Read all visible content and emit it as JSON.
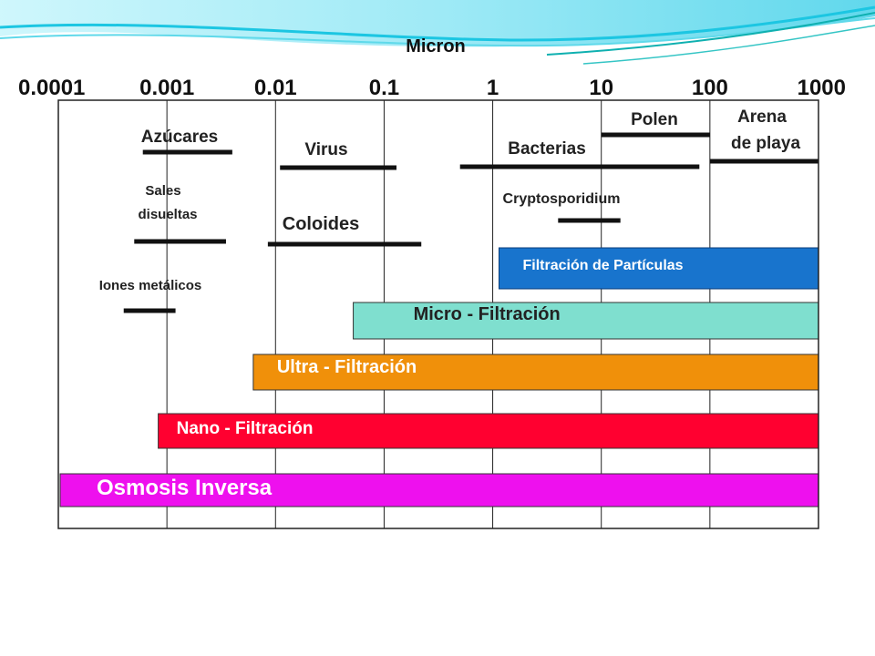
{
  "colors": {
    "accent_cyan": "#22d0f0",
    "accent_teal": "#14b8b8",
    "bar_line": "#111111",
    "particle_band": "#1874cd",
    "particle_band_text": "#ffffff",
    "micro_band": "#7fdfcf",
    "ultra_band": "#f0900a",
    "nano_band": "#ff0030",
    "ro_band": "#ee10ee"
  },
  "chart_data": {
    "type": "bar",
    "orientation": "horizontal-range",
    "x_scale": "log",
    "x_range": [
      0.0001,
      1000
    ],
    "xlabel": "Micron",
    "x_ticks": [
      "0.0001",
      "0.001",
      "0.01",
      "0.1",
      "1",
      "10",
      "100",
      "1000"
    ],
    "grid": "vertical",
    "items": [
      {
        "name": "Azúcares",
        "range": [
          0.0006,
          0.004
        ]
      },
      {
        "name": "Sales disueltas",
        "range": [
          0.0005,
          0.0035
        ]
      },
      {
        "name": "Iones metálicos",
        "range": [
          0.0004,
          0.0012
        ]
      },
      {
        "name": "Virus",
        "range": [
          0.011,
          0.13
        ]
      },
      {
        "name": "Coloides",
        "range": [
          0.0085,
          0.22
        ]
      },
      {
        "name": "Bacterias",
        "range": [
          0.5,
          80
        ]
      },
      {
        "name": "Cryptosporidium",
        "range": [
          4,
          15
        ]
      },
      {
        "name": "Polen",
        "range": [
          10,
          100
        ]
      },
      {
        "name": "Arena de playa",
        "range": [
          100,
          1000
        ]
      }
    ],
    "processes": [
      {
        "name": "Filtración de Partículas",
        "range": [
          1.1,
          1000
        ]
      },
      {
        "name": "Micro - Filtración",
        "range": [
          0.05,
          1000
        ]
      },
      {
        "name": "Ultra - Filtración",
        "range": [
          0.006,
          1000
        ]
      },
      {
        "name": "Nano - Filtración",
        "range": [
          0.0008,
          1000
        ]
      },
      {
        "name": "Osmosis Inversa",
        "range": [
          0.0001,
          1000
        ]
      }
    ]
  }
}
